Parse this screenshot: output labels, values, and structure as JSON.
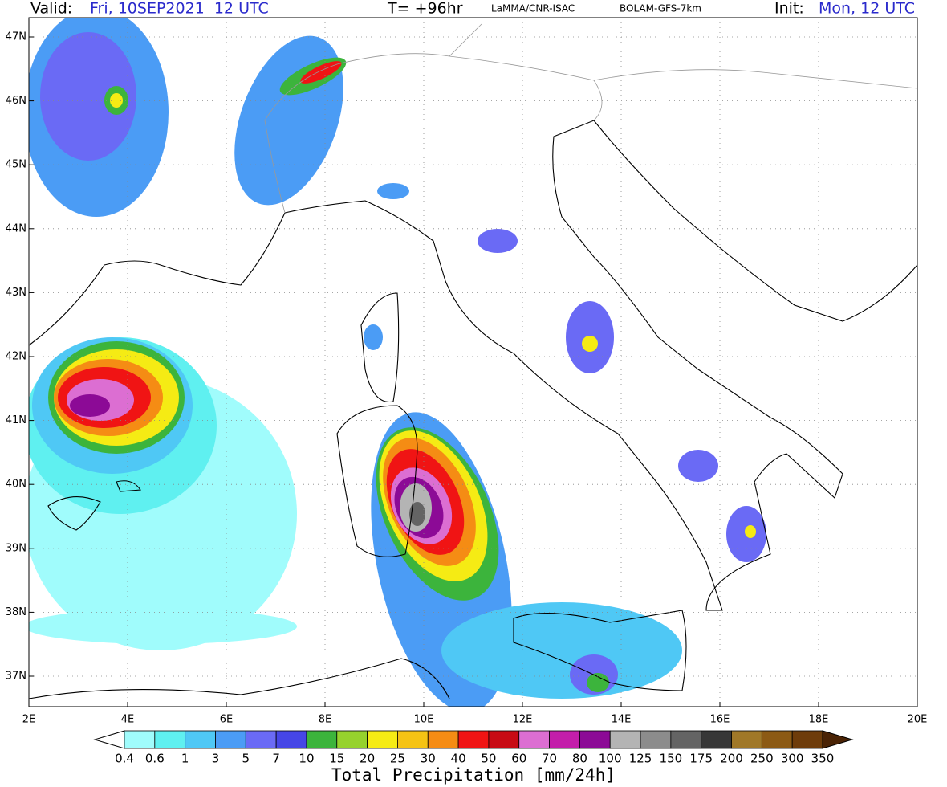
{
  "header": {
    "valid_label": "Valid:",
    "valid": "Fri, 10SEP2021  12 UTC",
    "lead": "T= +96hr",
    "source": "LaMMA/CNR-ISAC",
    "model": "BOLAM-GFS-7km",
    "init_label": "Init:",
    "init": "Mon, 12 UTC"
  },
  "map": {
    "lat_labels": [
      "47N",
      "46N",
      "45N",
      "44N",
      "43N",
      "42N",
      "41N",
      "40N",
      "39N",
      "38N",
      "37N"
    ],
    "lon_labels": [
      "2E",
      "4E",
      "6E",
      "8E",
      "10E",
      "12E",
      "14E",
      "16E",
      "18E",
      "20E"
    ]
  },
  "legend": {
    "levels": [
      "0.4",
      "0.6",
      "1",
      "3",
      "5",
      "7",
      "10",
      "15",
      "20",
      "25",
      "30",
      "40",
      "50",
      "60",
      "70",
      "80",
      "100",
      "125",
      "150",
      "175",
      "200",
      "250",
      "300",
      "350"
    ],
    "colors": [
      "#ffffff",
      "#a0fcfc",
      "#5ff0f0",
      "#4fc8f5",
      "#4b9cf5",
      "#6a6af5",
      "#4646e6",
      "#3cb43c",
      "#96d22d",
      "#f5eb14",
      "#f5c314",
      "#f58c14",
      "#f01414",
      "#c80a14",
      "#dc6ed2",
      "#c31eaa",
      "#8c0a96",
      "#b4b4b4",
      "#8c8c8c",
      "#646464",
      "#373737",
      "#a07828",
      "#8c5a14",
      "#6e3c0a",
      "#4a2305"
    ],
    "title": "Total Precipitation [mm/24h]"
  }
}
